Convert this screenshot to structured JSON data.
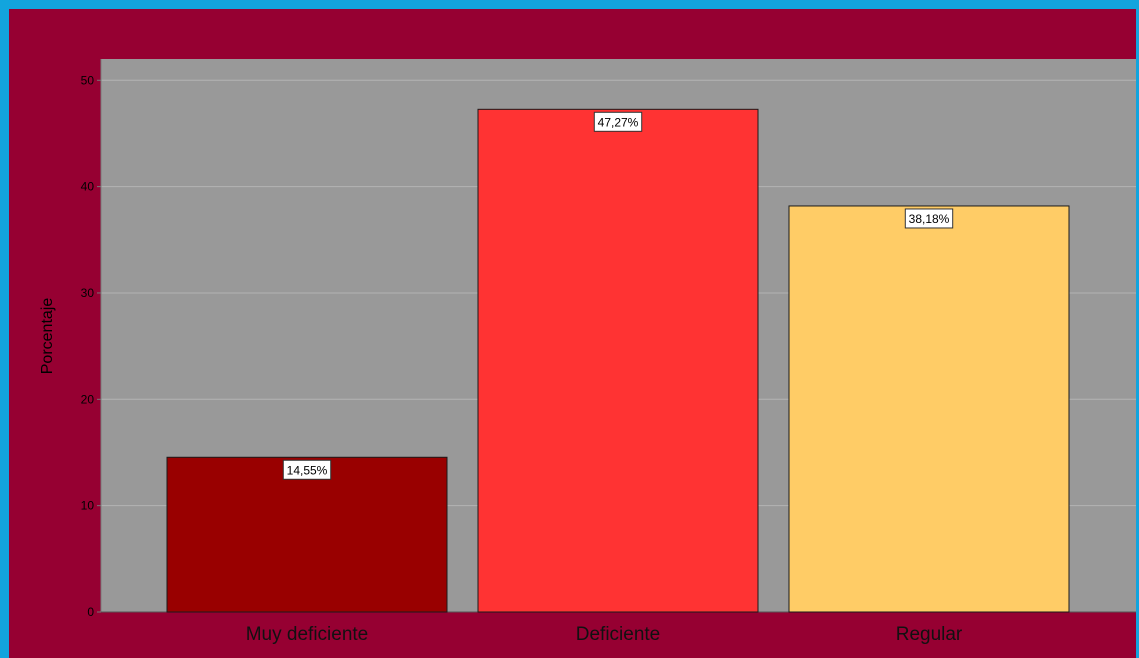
{
  "chart_data": {
    "type": "bar",
    "title": "",
    "xlabel": "",
    "ylabel": "Porcentaje",
    "categories": [
      "Muy deficiente",
      "Deficiente",
      "Regular"
    ],
    "values": [
      14.55,
      47.27,
      38.18
    ],
    "data_labels": [
      "14,55%",
      "47,27%",
      "38,18%"
    ],
    "bar_colors": [
      "#990000",
      "#ff3333",
      "#ffcc66"
    ],
    "ylim": [
      0,
      52
    ],
    "yticks": [
      "0",
      "10",
      "20",
      "30",
      "40",
      "50"
    ],
    "ytick_values": [
      0,
      10,
      20,
      30,
      40,
      50
    ],
    "grid": true,
    "legend": "none",
    "plot_background": "#999999",
    "outer_background": "#960032",
    "frame_color": "#12a4dd"
  }
}
